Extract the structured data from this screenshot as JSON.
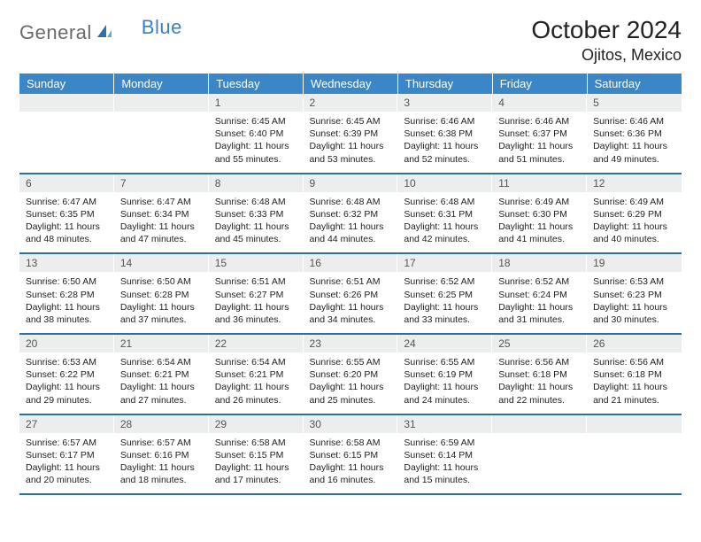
{
  "brand": {
    "general": "General",
    "blue": "Blue",
    "icon_color": "#2f6fb0"
  },
  "header": {
    "title": "October 2024",
    "location": "Ojitos, Mexico"
  },
  "theme": {
    "header_bg": "#3b86c7",
    "header_fg": "#ffffff",
    "row_divider": "#2e6ea8",
    "daynum_bg": "#eceded",
    "body_bg": "#ffffff",
    "text_color": "#222222",
    "muted_text": "#555555",
    "header_fontsize": 13,
    "title_fontsize": 28,
    "location_fontsize": 18,
    "cell_fontsize": 10.5
  },
  "weekdays": [
    "Sunday",
    "Monday",
    "Tuesday",
    "Wednesday",
    "Thursday",
    "Friday",
    "Saturday"
  ],
  "weeks": [
    [
      {
        "n": "",
        "sr": "",
        "ss": "",
        "dl": ""
      },
      {
        "n": "",
        "sr": "",
        "ss": "",
        "dl": ""
      },
      {
        "n": "1",
        "sr": "Sunrise: 6:45 AM",
        "ss": "Sunset: 6:40 PM",
        "dl": "Daylight: 11 hours and 55 minutes."
      },
      {
        "n": "2",
        "sr": "Sunrise: 6:45 AM",
        "ss": "Sunset: 6:39 PM",
        "dl": "Daylight: 11 hours and 53 minutes."
      },
      {
        "n": "3",
        "sr": "Sunrise: 6:46 AM",
        "ss": "Sunset: 6:38 PM",
        "dl": "Daylight: 11 hours and 52 minutes."
      },
      {
        "n": "4",
        "sr": "Sunrise: 6:46 AM",
        "ss": "Sunset: 6:37 PM",
        "dl": "Daylight: 11 hours and 51 minutes."
      },
      {
        "n": "5",
        "sr": "Sunrise: 6:46 AM",
        "ss": "Sunset: 6:36 PM",
        "dl": "Daylight: 11 hours and 49 minutes."
      }
    ],
    [
      {
        "n": "6",
        "sr": "Sunrise: 6:47 AM",
        "ss": "Sunset: 6:35 PM",
        "dl": "Daylight: 11 hours and 48 minutes."
      },
      {
        "n": "7",
        "sr": "Sunrise: 6:47 AM",
        "ss": "Sunset: 6:34 PM",
        "dl": "Daylight: 11 hours and 47 minutes."
      },
      {
        "n": "8",
        "sr": "Sunrise: 6:48 AM",
        "ss": "Sunset: 6:33 PM",
        "dl": "Daylight: 11 hours and 45 minutes."
      },
      {
        "n": "9",
        "sr": "Sunrise: 6:48 AM",
        "ss": "Sunset: 6:32 PM",
        "dl": "Daylight: 11 hours and 44 minutes."
      },
      {
        "n": "10",
        "sr": "Sunrise: 6:48 AM",
        "ss": "Sunset: 6:31 PM",
        "dl": "Daylight: 11 hours and 42 minutes."
      },
      {
        "n": "11",
        "sr": "Sunrise: 6:49 AM",
        "ss": "Sunset: 6:30 PM",
        "dl": "Daylight: 11 hours and 41 minutes."
      },
      {
        "n": "12",
        "sr": "Sunrise: 6:49 AM",
        "ss": "Sunset: 6:29 PM",
        "dl": "Daylight: 11 hours and 40 minutes."
      }
    ],
    [
      {
        "n": "13",
        "sr": "Sunrise: 6:50 AM",
        "ss": "Sunset: 6:28 PM",
        "dl": "Daylight: 11 hours and 38 minutes."
      },
      {
        "n": "14",
        "sr": "Sunrise: 6:50 AM",
        "ss": "Sunset: 6:28 PM",
        "dl": "Daylight: 11 hours and 37 minutes."
      },
      {
        "n": "15",
        "sr": "Sunrise: 6:51 AM",
        "ss": "Sunset: 6:27 PM",
        "dl": "Daylight: 11 hours and 36 minutes."
      },
      {
        "n": "16",
        "sr": "Sunrise: 6:51 AM",
        "ss": "Sunset: 6:26 PM",
        "dl": "Daylight: 11 hours and 34 minutes."
      },
      {
        "n": "17",
        "sr": "Sunrise: 6:52 AM",
        "ss": "Sunset: 6:25 PM",
        "dl": "Daylight: 11 hours and 33 minutes."
      },
      {
        "n": "18",
        "sr": "Sunrise: 6:52 AM",
        "ss": "Sunset: 6:24 PM",
        "dl": "Daylight: 11 hours and 31 minutes."
      },
      {
        "n": "19",
        "sr": "Sunrise: 6:53 AM",
        "ss": "Sunset: 6:23 PM",
        "dl": "Daylight: 11 hours and 30 minutes."
      }
    ],
    [
      {
        "n": "20",
        "sr": "Sunrise: 6:53 AM",
        "ss": "Sunset: 6:22 PM",
        "dl": "Daylight: 11 hours and 29 minutes."
      },
      {
        "n": "21",
        "sr": "Sunrise: 6:54 AM",
        "ss": "Sunset: 6:21 PM",
        "dl": "Daylight: 11 hours and 27 minutes."
      },
      {
        "n": "22",
        "sr": "Sunrise: 6:54 AM",
        "ss": "Sunset: 6:21 PM",
        "dl": "Daylight: 11 hours and 26 minutes."
      },
      {
        "n": "23",
        "sr": "Sunrise: 6:55 AM",
        "ss": "Sunset: 6:20 PM",
        "dl": "Daylight: 11 hours and 25 minutes."
      },
      {
        "n": "24",
        "sr": "Sunrise: 6:55 AM",
        "ss": "Sunset: 6:19 PM",
        "dl": "Daylight: 11 hours and 24 minutes."
      },
      {
        "n": "25",
        "sr": "Sunrise: 6:56 AM",
        "ss": "Sunset: 6:18 PM",
        "dl": "Daylight: 11 hours and 22 minutes."
      },
      {
        "n": "26",
        "sr": "Sunrise: 6:56 AM",
        "ss": "Sunset: 6:18 PM",
        "dl": "Daylight: 11 hours and 21 minutes."
      }
    ],
    [
      {
        "n": "27",
        "sr": "Sunrise: 6:57 AM",
        "ss": "Sunset: 6:17 PM",
        "dl": "Daylight: 11 hours and 20 minutes."
      },
      {
        "n": "28",
        "sr": "Sunrise: 6:57 AM",
        "ss": "Sunset: 6:16 PM",
        "dl": "Daylight: 11 hours and 18 minutes."
      },
      {
        "n": "29",
        "sr": "Sunrise: 6:58 AM",
        "ss": "Sunset: 6:15 PM",
        "dl": "Daylight: 11 hours and 17 minutes."
      },
      {
        "n": "30",
        "sr": "Sunrise: 6:58 AM",
        "ss": "Sunset: 6:15 PM",
        "dl": "Daylight: 11 hours and 16 minutes."
      },
      {
        "n": "31",
        "sr": "Sunrise: 6:59 AM",
        "ss": "Sunset: 6:14 PM",
        "dl": "Daylight: 11 hours and 15 minutes."
      },
      {
        "n": "",
        "sr": "",
        "ss": "",
        "dl": ""
      },
      {
        "n": "",
        "sr": "",
        "ss": "",
        "dl": ""
      }
    ]
  ]
}
